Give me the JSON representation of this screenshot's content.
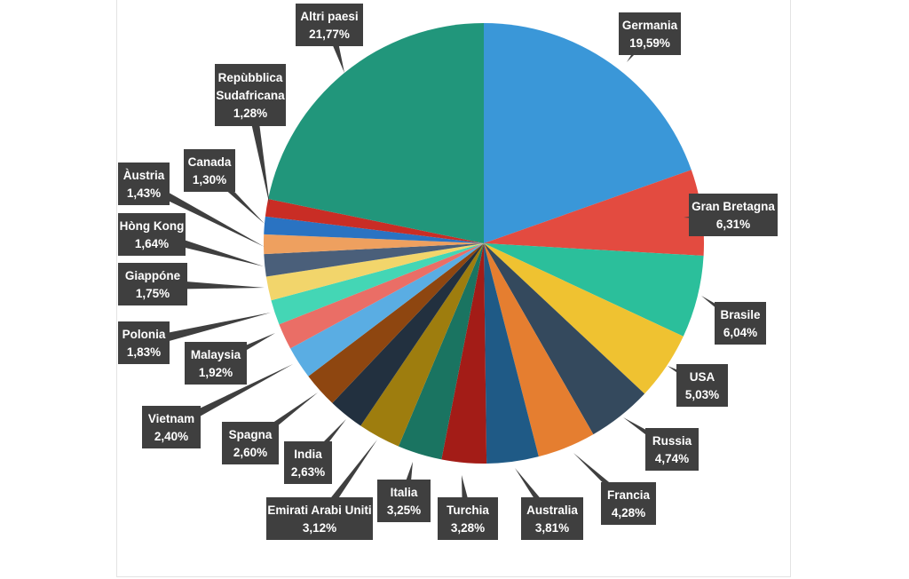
{
  "chart_data": {
    "type": "pie",
    "start_angle_deg": 0,
    "direction": "clockwise",
    "slices": [
      {
        "name": "Germania",
        "value": 19.59,
        "label": "19,59%",
        "color": "#3a97d8"
      },
      {
        "name": "Gran Bretagna",
        "value": 6.31,
        "label": "6,31%",
        "color": "#e34b40"
      },
      {
        "name": "Brasile",
        "value": 6.04,
        "label": "6,04%",
        "color": "#2bbf9b"
      },
      {
        "name": "USA",
        "value": 5.03,
        "label": "5,03%",
        "color": "#efc231"
      },
      {
        "name": "Russia",
        "value": 4.74,
        "label": "4,74%",
        "color": "#34495d"
      },
      {
        "name": "Francia",
        "value": 4.28,
        "label": "4,28%",
        "color": "#e57e30"
      },
      {
        "name": "Australia",
        "value": 3.81,
        "label": "3,81%",
        "color": "#1f5a86"
      },
      {
        "name": "Turchia",
        "value": 3.28,
        "label": "3,28%",
        "color": "#a31c17"
      },
      {
        "name": "Italia",
        "value": 3.25,
        "label": "3,25%",
        "color": "#1a7461"
      },
      {
        "name": "Emirati Arabi Uniti",
        "value": 3.12,
        "label": "3,12%",
        "color": "#9e7d0e"
      },
      {
        "name": "India",
        "value": 2.63,
        "label": "2,63%",
        "color": "#22303f"
      },
      {
        "name": "Spagna",
        "value": 2.6,
        "label": "2,60%",
        "color": "#8e4610"
      },
      {
        "name": "Vietnam",
        "value": 2.4,
        "label": "2,40%",
        "color": "#5aade3"
      },
      {
        "name": "Malaysia",
        "value": 1.92,
        "label": "1,92%",
        "color": "#ea6e66"
      },
      {
        "name": "Polonia",
        "value": 1.83,
        "label": "1,83%",
        "color": "#44d6b5"
      },
      {
        "name": "Giappóne",
        "value": 1.75,
        "label": "1,75%",
        "color": "#f2d56b"
      },
      {
        "name": "Hòng Kong",
        "value": 1.64,
        "label": "1,64%",
        "color": "#4a5f7a"
      },
      {
        "name": "Àustria",
        "value": 1.43,
        "label": "1,43%",
        "color": "#eea05f"
      },
      {
        "name": "Canada",
        "value": 1.3,
        "label": "1,30%",
        "color": "#2a73c2"
      },
      {
        "name": "Repùbblica\nSudafricana",
        "value": 1.28,
        "label": "1,28%",
        "color": "#c92d25"
      },
      {
        "name": "Altri paesi",
        "value": 21.77,
        "label": "21,77%",
        "color": "#21967b"
      }
    ]
  }
}
